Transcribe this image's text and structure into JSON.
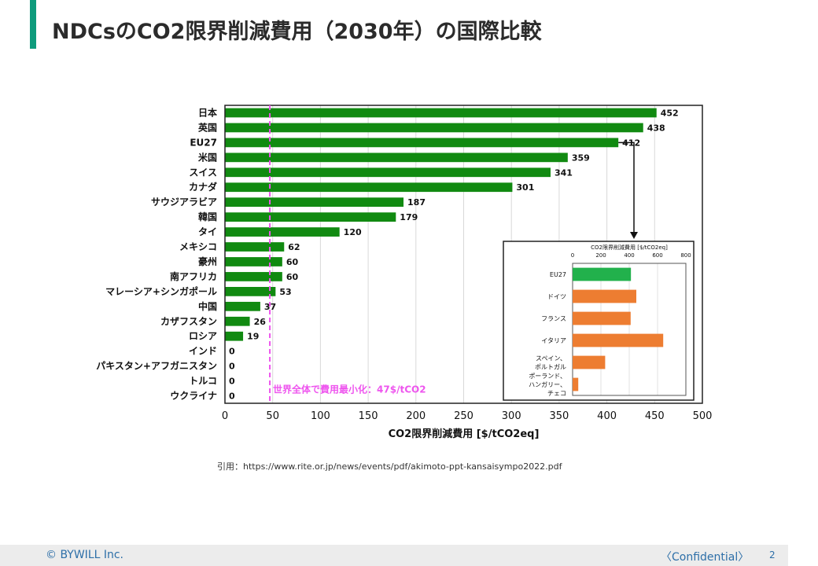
{
  "slide": {
    "title": "NDCsのCO2限界削減費用（2030年）の国際比較",
    "source": "引用：https://www.rite.or.jp/news/events/pdf/akimoto-ppt-kansaisympo2022.pdf",
    "copyright": "© BYWILL Inc.",
    "confidential": "〈Confidential〉",
    "page_number": "2",
    "accent_color": "#0e9b7c"
  },
  "chart_data": [
    {
      "type": "bar",
      "orientation": "horizontal",
      "categories": [
        "日本",
        "英国",
        "EU27",
        "米国",
        "スイス",
        "カナダ",
        "サウジアラビア",
        "韓国",
        "タイ",
        "メキシコ",
        "豪州",
        "南アフリカ",
        "マレーシア+シンガポール",
        "中国",
        "カザフスタン",
        "ロシア",
        "インド",
        "パキスタン+アフガニスタン",
        "トルコ",
        "ウクライナ"
      ],
      "values": [
        452,
        438,
        412,
        359,
        341,
        301,
        187,
        179,
        120,
        62,
        60,
        60,
        53,
        37,
        26,
        19,
        0,
        0,
        0,
        0
      ],
      "xlabel": "CO2限界削減費用 [$/tCO2eq]",
      "xlim": [
        0,
        500
      ],
      "xticks": [
        0,
        50,
        100,
        150,
        200,
        250,
        300,
        350,
        400,
        450,
        500
      ],
      "grid": "vertical",
      "bar_color": "#118a11",
      "reference_line": {
        "value": 47,
        "label": "世界全体で費用最小化：47$/tCO2",
        "color": "#ee55ee"
      }
    },
    {
      "type": "bar",
      "orientation": "horizontal",
      "categories": [
        "EU27",
        "ドイツ",
        "フランス",
        "イタリア",
        "スペイン、ポルトガル",
        "ポーランド、ハンガリー、チェコ"
      ],
      "values": [
        412,
        450,
        410,
        640,
        230,
        40
      ],
      "title": "CO2限界削減費用 [$/tCO2eq]",
      "xlim": [
        0,
        800
      ],
      "xticks": [
        0,
        200,
        400,
        600,
        800
      ],
      "colors": [
        "#22b14c",
        "#ed7d31",
        "#ed7d31",
        "#ed7d31",
        "#ed7d31",
        "#ed7d31"
      ]
    }
  ]
}
